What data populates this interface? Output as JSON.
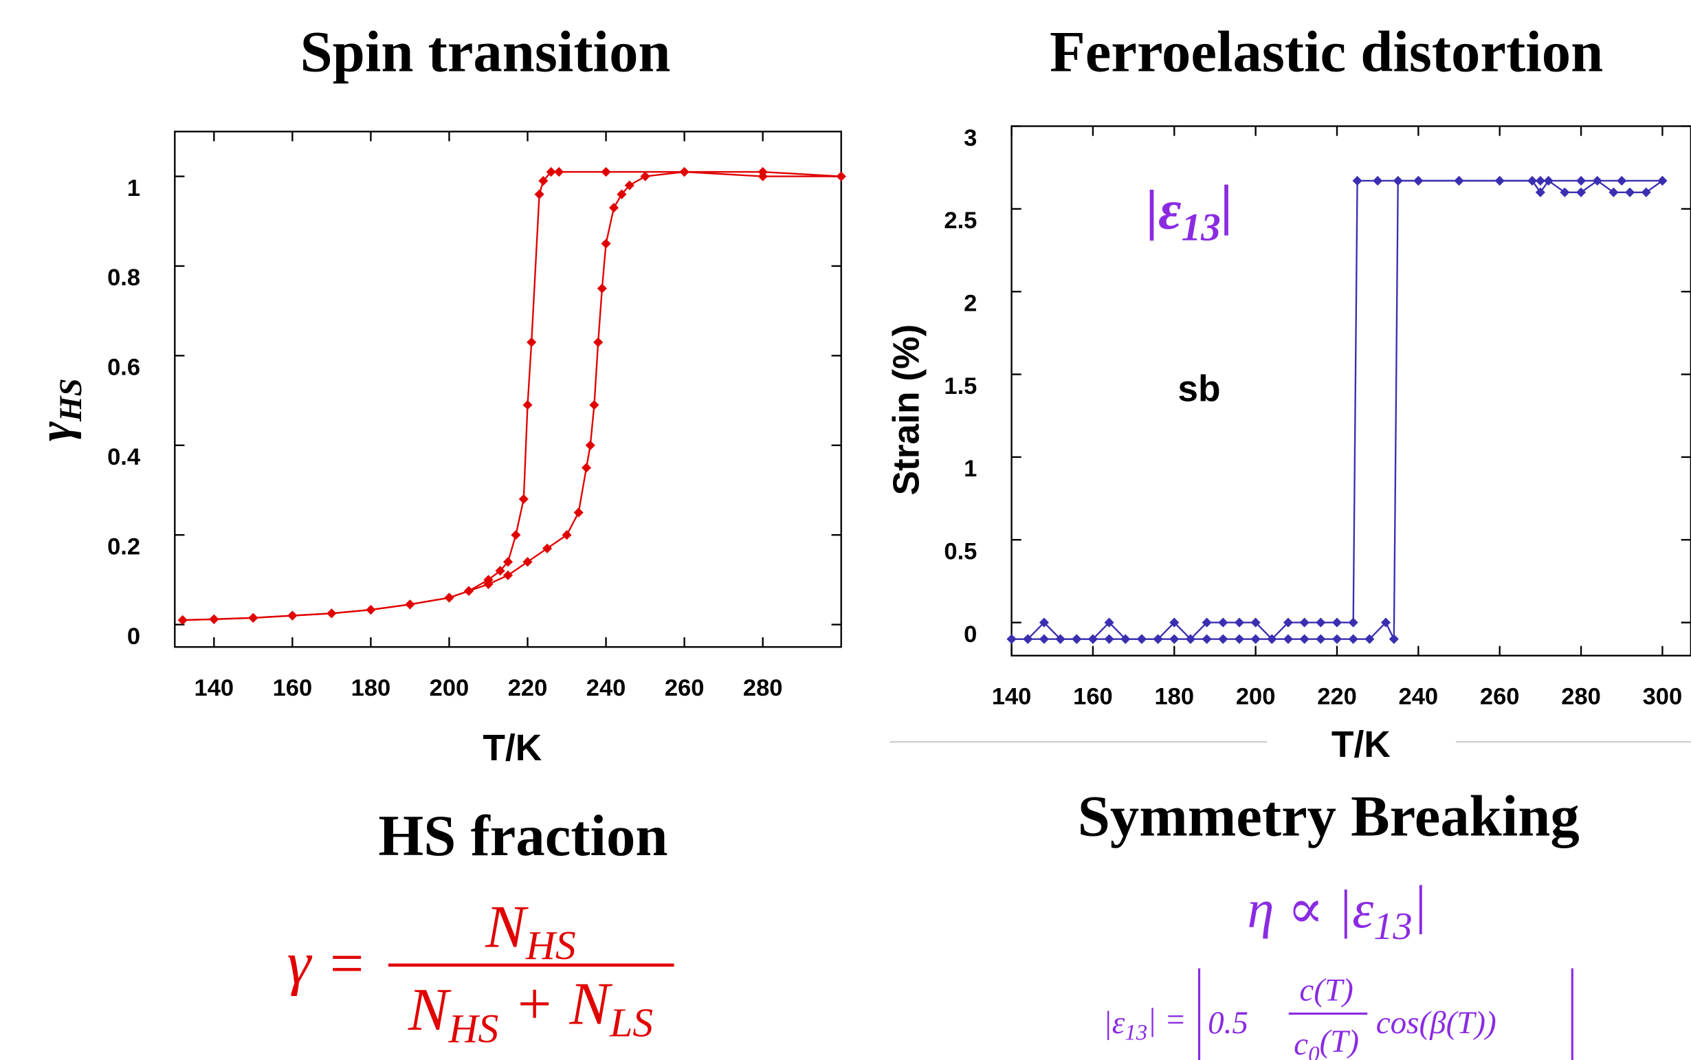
{
  "chart_data": [
    {
      "type": "line",
      "title": "Spin transition",
      "xlabel": "T/K",
      "ylabel": "γ",
      "ylabel_subscript": "HS",
      "xlim": [
        130,
        300
      ],
      "xticks": [
        140,
        160,
        180,
        200,
        220,
        240,
        260,
        280
      ],
      "ylim": [
        -0.05,
        1.1
      ],
      "yticks": [
        0,
        0.2,
        0.4,
        0.6,
        0.8,
        1
      ],
      "series": [
        {
          "color": "#e00000",
          "x": [
            132,
            140,
            150,
            160,
            170,
            180,
            190,
            200,
            205,
            210,
            213,
            215,
            217,
            219,
            220,
            221,
            223,
            224,
            226,
            228,
            240,
            260,
            280,
            300
          ],
          "values": [
            0.01,
            0.012,
            0.015,
            0.02,
            0.025,
            0.033,
            0.045,
            0.06,
            0.075,
            0.1,
            0.12,
            0.14,
            0.2,
            0.28,
            0.49,
            0.63,
            0.96,
            0.99,
            1.01,
            1.01,
            1.01,
            1.01,
            1.01,
            1.0
          ]
        },
        {
          "color": "#e00000",
          "x": [
            132,
            140,
            150,
            160,
            170,
            180,
            190,
            200,
            205,
            210,
            215,
            220,
            225,
            230,
            233,
            235,
            236,
            237,
            238,
            239,
            240,
            242,
            244,
            246,
            250,
            260,
            280,
            300
          ],
          "values": [
            0.01,
            0.012,
            0.015,
            0.02,
            0.025,
            0.033,
            0.045,
            0.06,
            0.075,
            0.09,
            0.11,
            0.14,
            0.17,
            0.2,
            0.25,
            0.35,
            0.4,
            0.49,
            0.63,
            0.75,
            0.85,
            0.93,
            0.96,
            0.98,
            1.0,
            1.01,
            1.0,
            1.0
          ]
        }
      ]
    },
    {
      "type": "line",
      "title": "Ferroelastic distortion",
      "xlabel": "T/K",
      "ylabel": "Strain (%)",
      "xlim": [
        140,
        307
      ],
      "xticks": [
        140,
        160,
        180,
        200,
        220,
        240,
        260,
        280,
        300
      ],
      "ylim": [
        -0.2,
        3
      ],
      "yticks": [
        0,
        0.5,
        1,
        1.5,
        2,
        2.5,
        3
      ],
      "annotations": [
        {
          "text": [
            "|ε",
            "13",
            "|"
          ],
          "color": "#8a2be2"
        },
        {
          "text": [
            "sb"
          ],
          "color": "#000000"
        }
      ],
      "series": [
        {
          "color": "#3a2fb0",
          "x": [
            140,
            144,
            148,
            152,
            156,
            160,
            164,
            168,
            172,
            176,
            180,
            184,
            188,
            192,
            196,
            200,
            204,
            208,
            212,
            216,
            220,
            224,
            225,
            230,
            240,
            250,
            260,
            270,
            280,
            290,
            300
          ],
          "values": [
            -0.1,
            -0.1,
            0,
            -0.1,
            -0.1,
            -0.1,
            0,
            -0.1,
            -0.1,
            -0.1,
            0,
            -0.1,
            0,
            0,
            0,
            0,
            -0.1,
            0,
            0,
            0,
            0,
            0,
            2.67,
            2.67,
            2.67,
            2.67,
            2.67,
            2.67,
            2.67,
            2.67,
            2.67
          ]
        },
        {
          "color": "#3a2fb0",
          "x": [
            140,
            144,
            148,
            152,
            156,
            160,
            164,
            168,
            172,
            176,
            180,
            184,
            188,
            192,
            196,
            200,
            204,
            208,
            212,
            216,
            220,
            224,
            228,
            232,
            234,
            235,
            240,
            250,
            260,
            268,
            270,
            272,
            276,
            280,
            284,
            288,
            292,
            296,
            300
          ],
          "values": [
            -0.1,
            -0.1,
            -0.1,
            -0.1,
            -0.1,
            -0.1,
            -0.1,
            -0.1,
            -0.1,
            -0.1,
            -0.1,
            -0.1,
            -0.1,
            -0.1,
            -0.1,
            -0.1,
            -0.1,
            -0.1,
            -0.1,
            -0.1,
            -0.1,
            -0.1,
            -0.1,
            0,
            -0.1,
            2.67,
            2.67,
            2.67,
            2.67,
            2.67,
            2.6,
            2.67,
            2.6,
            2.6,
            2.67,
            2.6,
            2.6,
            2.6,
            2.67
          ]
        }
      ]
    }
  ],
  "left_caption": {
    "title": "HS fraction",
    "color": "#e00000",
    "lhs": [
      "γ ="
    ],
    "numerator": [
      "N",
      "HS"
    ],
    "denominator": [
      "N",
      "HS",
      " + N",
      "LS"
    ]
  },
  "right_caption": {
    "title": "Symmetry Breaking",
    "color": "#8a2be2",
    "order_parameter": [
      "η ∝ |ε",
      "13",
      "|"
    ],
    "strain_lhs": [
      "|ε",
      "13",
      "| ="
    ],
    "factor": [
      "0.5"
    ],
    "numerator": [
      "c(T)"
    ],
    "denominator": [
      "c",
      "0",
      "(T)"
    ],
    "tail": [
      "cos(β(T))"
    ]
  }
}
